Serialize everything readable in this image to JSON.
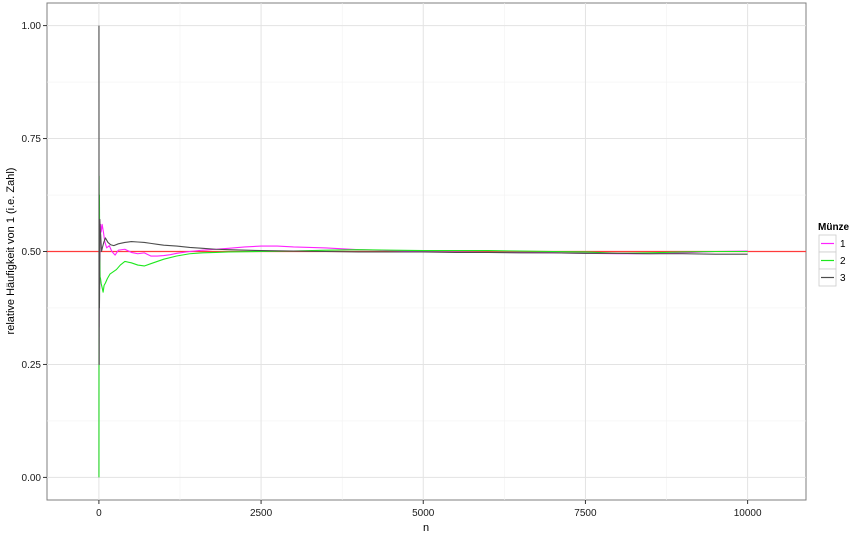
{
  "chart_data": {
    "type": "line",
    "title": "",
    "xlabel": "n",
    "ylabel": "relative Häufigkeit von 1 (i.e. Zahl)",
    "xlim": [
      -800,
      10900
    ],
    "ylim": [
      -0.05,
      1.05
    ],
    "x_ticks": [
      0,
      2500,
      5000,
      7500,
      10000
    ],
    "y_ticks": [
      0.0,
      0.25,
      0.5,
      0.75,
      1.0
    ],
    "x_tick_labels": [
      "0",
      "2500",
      "5000",
      "7500",
      "10000"
    ],
    "y_tick_labels": [
      "0.00",
      "0.25",
      "0.50",
      "0.75",
      "1.00"
    ],
    "grid": true,
    "legend": {
      "title": "Münze",
      "position": "right"
    },
    "reference_line": {
      "y": 0.5,
      "color": "#ff3b3b"
    },
    "series": [
      {
        "name": "1",
        "color": "#ff22ff",
        "points": [
          [
            1,
            0.0
          ],
          [
            2,
            0.5
          ],
          [
            3,
            0.333
          ],
          [
            5,
            0.4
          ],
          [
            8,
            0.5
          ],
          [
            12,
            0.417
          ],
          [
            18,
            0.5
          ],
          [
            25,
            0.56
          ],
          [
            35,
            0.543
          ],
          [
            50,
            0.56
          ],
          [
            70,
            0.543
          ],
          [
            90,
            0.522
          ],
          [
            120,
            0.508
          ],
          [
            160,
            0.513
          ],
          [
            200,
            0.5
          ],
          [
            250,
            0.492
          ],
          [
            300,
            0.503
          ],
          [
            400,
            0.505
          ],
          [
            500,
            0.498
          ],
          [
            600,
            0.495
          ],
          [
            700,
            0.497
          ],
          [
            800,
            0.49
          ],
          [
            900,
            0.49
          ],
          [
            1000,
            0.491
          ],
          [
            1100,
            0.493
          ],
          [
            1200,
            0.496
          ],
          [
            1400,
            0.5
          ],
          [
            1600,
            0.503
          ],
          [
            1800,
            0.505
          ],
          [
            2000,
            0.507
          ],
          [
            2250,
            0.51
          ],
          [
            2500,
            0.512
          ],
          [
            2750,
            0.512
          ],
          [
            3000,
            0.51
          ],
          [
            3250,
            0.509
          ],
          [
            3500,
            0.508
          ],
          [
            3750,
            0.506
          ],
          [
            4000,
            0.504
          ],
          [
            4500,
            0.502
          ],
          [
            5000,
            0.5
          ],
          [
            5500,
            0.499
          ],
          [
            6000,
            0.498
          ],
          [
            6500,
            0.498
          ],
          [
            7000,
            0.497
          ],
          [
            7500,
            0.496
          ],
          [
            8000,
            0.495
          ],
          [
            8500,
            0.495
          ],
          [
            9000,
            0.497
          ],
          [
            9500,
            0.5
          ],
          [
            10000,
            0.501
          ]
        ]
      },
      {
        "name": "2",
        "color": "#1ee81e",
        "points": [
          [
            1,
            0.0
          ],
          [
            2,
            0.5
          ],
          [
            3,
            0.667
          ],
          [
            5,
            0.6
          ],
          [
            8,
            0.625
          ],
          [
            12,
            0.5
          ],
          [
            18,
            0.444
          ],
          [
            25,
            0.44
          ],
          [
            35,
            0.429
          ],
          [
            50,
            0.42
          ],
          [
            65,
            0.41
          ],
          [
            80,
            0.425
          ],
          [
            100,
            0.43
          ],
          [
            130,
            0.44
          ],
          [
            170,
            0.45
          ],
          [
            220,
            0.455
          ],
          [
            270,
            0.46
          ],
          [
            330,
            0.47
          ],
          [
            400,
            0.478
          ],
          [
            500,
            0.475
          ],
          [
            600,
            0.47
          ],
          [
            700,
            0.468
          ],
          [
            800,
            0.473
          ],
          [
            900,
            0.478
          ],
          [
            1000,
            0.483
          ],
          [
            1200,
            0.49
          ],
          [
            1400,
            0.495
          ],
          [
            1600,
            0.497
          ],
          [
            1800,
            0.498
          ],
          [
            2000,
            0.499
          ],
          [
            2500,
            0.5
          ],
          [
            3000,
            0.501
          ],
          [
            3500,
            0.503
          ],
          [
            4000,
            0.504
          ],
          [
            4500,
            0.503
          ],
          [
            5000,
            0.502
          ],
          [
            5500,
            0.502
          ],
          [
            6000,
            0.502
          ],
          [
            6500,
            0.501
          ],
          [
            7000,
            0.5
          ],
          [
            7500,
            0.499
          ],
          [
            8000,
            0.496
          ],
          [
            8500,
            0.497
          ],
          [
            9000,
            0.499
          ],
          [
            9500,
            0.5
          ],
          [
            10000,
            0.5
          ]
        ]
      },
      {
        "name": "3",
        "color": "#4d4d4d",
        "points": [
          [
            1,
            1.0
          ],
          [
            2,
            0.5
          ],
          [
            3,
            0.333
          ],
          [
            4,
            0.25
          ],
          [
            6,
            0.5
          ],
          [
            8,
            0.375
          ],
          [
            10,
            0.4
          ],
          [
            14,
            0.571
          ],
          [
            20,
            0.55
          ],
          [
            28,
            0.536
          ],
          [
            40,
            0.5
          ],
          [
            55,
            0.509
          ],
          [
            75,
            0.52
          ],
          [
            100,
            0.53
          ],
          [
            140,
            0.52
          ],
          [
            180,
            0.515
          ],
          [
            230,
            0.513
          ],
          [
            300,
            0.517
          ],
          [
            400,
            0.52
          ],
          [
            500,
            0.522
          ],
          [
            600,
            0.521
          ],
          [
            700,
            0.52
          ],
          [
            800,
            0.518
          ],
          [
            900,
            0.516
          ],
          [
            1000,
            0.514
          ],
          [
            1200,
            0.512
          ],
          [
            1400,
            0.509
          ],
          [
            1600,
            0.507
          ],
          [
            1800,
            0.505
          ],
          [
            2000,
            0.504
          ],
          [
            2500,
            0.502
          ],
          [
            3000,
            0.501
          ],
          [
            3500,
            0.5
          ],
          [
            4000,
            0.499
          ],
          [
            4500,
            0.499
          ],
          [
            5000,
            0.499
          ],
          [
            5500,
            0.498
          ],
          [
            6000,
            0.498
          ],
          [
            6500,
            0.497
          ],
          [
            7000,
            0.497
          ],
          [
            7500,
            0.496
          ],
          [
            8000,
            0.496
          ],
          [
            8500,
            0.495
          ],
          [
            9000,
            0.495
          ],
          [
            9500,
            0.494
          ],
          [
            10000,
            0.494
          ]
        ]
      }
    ]
  }
}
